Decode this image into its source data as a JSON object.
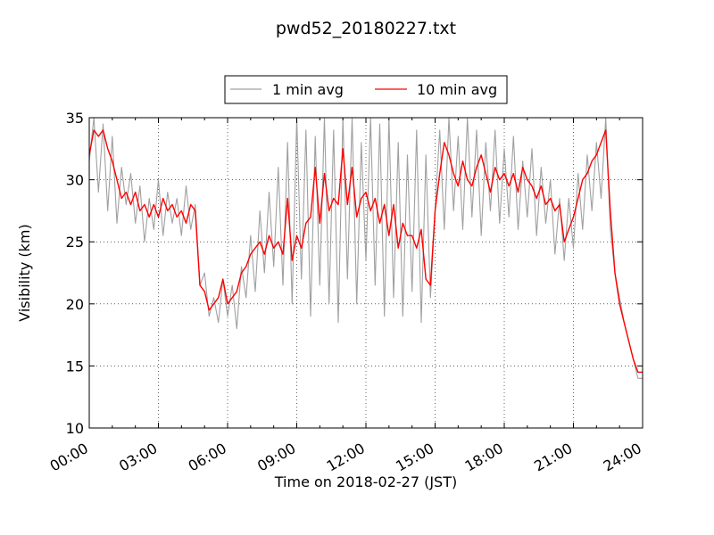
{
  "chart_data": {
    "type": "line",
    "title": "pwd52_20180227.txt",
    "xlabel": "Time on 2018-02-27 (JST)",
    "ylabel": "Visibility (km)",
    "x_unit": "hours",
    "xlim": [
      0,
      24
    ],
    "ylim": [
      10,
      35
    ],
    "x_tick_values": [
      0,
      3,
      6,
      9,
      12,
      15,
      18,
      21,
      24
    ],
    "x_tick_labels": [
      "00:00",
      "03:00",
      "06:00",
      "09:00",
      "12:00",
      "15:00",
      "18:00",
      "21:00",
      "24:00"
    ],
    "y_ticks": [
      10,
      15,
      20,
      25,
      30,
      35
    ],
    "grid": true,
    "legend_position": "top-center",
    "series": [
      {
        "name": "1 min avg",
        "color": "#a0a0a0",
        "x": [
          0.0,
          0.2,
          0.4,
          0.6,
          0.8,
          1.0,
          1.2,
          1.4,
          1.6,
          1.8,
          2.0,
          2.2,
          2.4,
          2.6,
          2.8,
          3.0,
          3.2,
          3.4,
          3.6,
          3.8,
          4.0,
          4.2,
          4.4,
          4.6,
          4.8,
          5.0,
          5.2,
          5.4,
          5.6,
          5.8,
          6.0,
          6.2,
          6.4,
          6.6,
          6.8,
          7.0,
          7.2,
          7.4,
          7.6,
          7.8,
          8.0,
          8.2,
          8.4,
          8.6,
          8.8,
          9.0,
          9.2,
          9.4,
          9.6,
          9.8,
          10.0,
          10.2,
          10.4,
          10.6,
          10.8,
          11.0,
          11.2,
          11.4,
          11.6,
          11.8,
          12.0,
          12.2,
          12.4,
          12.6,
          12.8,
          13.0,
          13.2,
          13.4,
          13.6,
          13.8,
          14.0,
          14.2,
          14.4,
          14.6,
          14.8,
          15.0,
          15.2,
          15.4,
          15.6,
          15.8,
          16.0,
          16.2,
          16.4,
          16.6,
          16.8,
          17.0,
          17.2,
          17.4,
          17.6,
          17.8,
          18.0,
          18.2,
          18.4,
          18.6,
          18.8,
          19.0,
          19.2,
          19.4,
          19.6,
          19.8,
          20.0,
          20.2,
          20.4,
          20.6,
          20.8,
          21.0,
          21.2,
          21.4,
          21.6,
          21.8,
          22.0,
          22.2,
          22.4,
          22.6,
          22.8,
          23.0,
          23.2,
          23.4,
          23.6,
          23.8,
          24.0
        ],
        "values": [
          31.5,
          35.0,
          29.0,
          34.5,
          27.5,
          33.5,
          26.5,
          31.0,
          28.0,
          30.5,
          26.5,
          29.5,
          25.0,
          28.5,
          26.0,
          30.0,
          25.5,
          29.0,
          26.5,
          28.5,
          25.5,
          29.5,
          26.0,
          28.0,
          21.5,
          22.5,
          19.0,
          20.5,
          18.5,
          22.0,
          19.0,
          21.5,
          18.0,
          23.0,
          20.5,
          25.5,
          21.0,
          27.5,
          22.5,
          29.0,
          23.0,
          31.0,
          21.5,
          33.0,
          20.0,
          35.0,
          22.0,
          34.0,
          19.0,
          33.5,
          21.5,
          35.0,
          20.0,
          34.0,
          18.5,
          35.0,
          22.0,
          35.0,
          20.0,
          33.0,
          23.5,
          35.0,
          21.5,
          34.5,
          19.0,
          35.0,
          20.5,
          33.0,
          19.0,
          32.0,
          21.0,
          34.0,
          18.5,
          32.0,
          20.5,
          27.5,
          34.0,
          26.0,
          35.0,
          27.5,
          33.5,
          26.0,
          35.0,
          27.0,
          34.0,
          25.5,
          33.0,
          27.5,
          34.0,
          26.5,
          32.5,
          27.0,
          33.5,
          26.0,
          31.5,
          27.0,
          32.5,
          25.5,
          31.0,
          26.5,
          30.0,
          24.0,
          28.5,
          23.5,
          28.5,
          24.5,
          30.5,
          26.0,
          32.0,
          27.5,
          33.0,
          28.5,
          35.0,
          26.0,
          22.5,
          20.5,
          18.5,
          17.0,
          15.5,
          14.0,
          14.0
        ]
      },
      {
        "name": "10 min avg",
        "color": "#ff0000",
        "x": [
          0.0,
          0.2,
          0.4,
          0.6,
          0.8,
          1.0,
          1.2,
          1.4,
          1.6,
          1.8,
          2.0,
          2.2,
          2.4,
          2.6,
          2.8,
          3.0,
          3.2,
          3.4,
          3.6,
          3.8,
          4.0,
          4.2,
          4.4,
          4.6,
          4.8,
          5.0,
          5.2,
          5.4,
          5.6,
          5.8,
          6.0,
          6.2,
          6.4,
          6.6,
          6.8,
          7.0,
          7.2,
          7.4,
          7.6,
          7.8,
          8.0,
          8.2,
          8.4,
          8.6,
          8.8,
          9.0,
          9.2,
          9.4,
          9.6,
          9.8,
          10.0,
          10.2,
          10.4,
          10.6,
          10.8,
          11.0,
          11.2,
          11.4,
          11.6,
          11.8,
          12.0,
          12.2,
          12.4,
          12.6,
          12.8,
          13.0,
          13.2,
          13.4,
          13.6,
          13.8,
          14.0,
          14.2,
          14.4,
          14.6,
          14.8,
          15.0,
          15.2,
          15.4,
          15.6,
          15.8,
          16.0,
          16.2,
          16.4,
          16.6,
          16.8,
          17.0,
          17.2,
          17.4,
          17.6,
          17.8,
          18.0,
          18.2,
          18.4,
          18.6,
          18.8,
          19.0,
          19.2,
          19.4,
          19.6,
          19.8,
          20.0,
          20.2,
          20.4,
          20.6,
          20.8,
          21.0,
          21.2,
          21.4,
          21.6,
          21.8,
          22.0,
          22.2,
          22.4,
          22.6,
          22.8,
          23.0,
          23.2,
          23.4,
          23.6,
          23.8,
          24.0
        ],
        "values": [
          32.0,
          34.0,
          33.5,
          34.0,
          32.5,
          31.5,
          30.0,
          28.5,
          29.0,
          28.0,
          29.0,
          27.5,
          28.0,
          27.0,
          28.0,
          27.0,
          28.5,
          27.5,
          28.0,
          27.0,
          27.5,
          26.5,
          28.0,
          27.5,
          21.5,
          21.0,
          19.5,
          20.0,
          20.5,
          22.0,
          20.0,
          20.5,
          21.0,
          22.5,
          23.0,
          24.0,
          24.5,
          25.0,
          24.0,
          25.5,
          24.5,
          25.0,
          24.0,
          28.5,
          23.5,
          25.5,
          24.5,
          26.5,
          27.0,
          31.0,
          26.5,
          30.5,
          27.5,
          28.5,
          28.0,
          32.5,
          28.0,
          31.0,
          27.0,
          28.5,
          29.0,
          27.5,
          28.5,
          26.5,
          28.0,
          25.5,
          28.0,
          24.5,
          26.5,
          25.5,
          25.5,
          24.5,
          26.0,
          22.0,
          21.5,
          27.5,
          30.5,
          33.0,
          32.0,
          30.5,
          29.5,
          31.5,
          30.0,
          29.5,
          31.0,
          32.0,
          30.5,
          29.0,
          31.0,
          30.0,
          30.5,
          29.5,
          30.5,
          29.0,
          31.0,
          30.0,
          29.5,
          28.5,
          29.5,
          28.0,
          28.5,
          27.5,
          28.0,
          25.0,
          26.0,
          27.0,
          28.5,
          30.0,
          30.5,
          31.5,
          32.0,
          33.0,
          34.0,
          27.5,
          22.5,
          20.0,
          18.5,
          17.0,
          15.5,
          14.5,
          14.5
        ]
      }
    ]
  }
}
